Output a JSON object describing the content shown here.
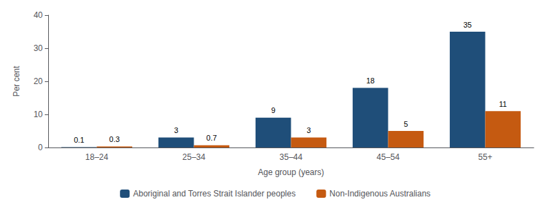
{
  "chart_data": {
    "type": "bar",
    "categories": [
      "18–24",
      "25–34",
      "35–44",
      "45–54",
      "55+"
    ],
    "series": [
      {
        "name": "Aboriginal and Torres Strait Islander peoples",
        "color": "#1F4E79",
        "values": [
          0.1,
          3,
          9,
          18,
          35
        ]
      },
      {
        "name": "Non-Indigenous Australians",
        "color": "#C55A11",
        "values": [
          0.3,
          0.7,
          3,
          5,
          11
        ]
      }
    ],
    "xlabel": "Age group (years)",
    "ylabel": "Per cent",
    "ylim": [
      0,
      40
    ],
    "yticks": [
      0,
      10,
      20,
      30,
      40
    ],
    "data_labels": true,
    "legend": "bottom",
    "grid": false
  }
}
